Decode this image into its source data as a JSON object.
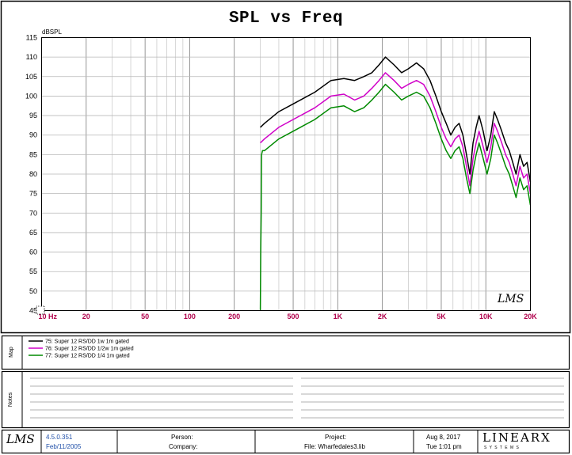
{
  "chart_data": {
    "type": "line",
    "title": "SPL vs Freq",
    "ylabel": "dBSPL",
    "xlabel": "",
    "x_scale": "log",
    "xlim": [
      10,
      20000
    ],
    "ylim": [
      45,
      115
    ],
    "yticks": [
      45,
      50,
      55,
      60,
      65,
      70,
      75,
      80,
      85,
      90,
      95,
      100,
      105,
      110,
      115
    ],
    "xticks": [
      {
        "v": 10,
        "label": "10 Hz"
      },
      {
        "v": 20,
        "label": "20"
      },
      {
        "v": 50,
        "label": "50"
      },
      {
        "v": 100,
        "label": "100"
      },
      {
        "v": 200,
        "label": "200"
      },
      {
        "v": 500,
        "label": "500"
      },
      {
        "v": 1000,
        "label": "1K"
      },
      {
        "v": 2000,
        "label": "2K"
      },
      {
        "v": 5000,
        "label": "5K"
      },
      {
        "v": 10000,
        "label": "10K"
      },
      {
        "v": 20000,
        "label": "20K"
      }
    ],
    "grid": true,
    "series": [
      {
        "name": "75: Super 12 RS/DD  1w 1m gated",
        "color": "#000000",
        "x": [
          300,
          320,
          400,
          500,
          700,
          900,
          1100,
          1300,
          1500,
          1700,
          1900,
          2100,
          2400,
          2700,
          3000,
          3400,
          3800,
          4200,
          4600,
          5000,
          5400,
          5800,
          6200,
          6600,
          7000,
          7400,
          7800,
          8200,
          8600,
          9000,
          9600,
          10200,
          10800,
          11400,
          12000,
          12800,
          13600,
          14400,
          15200,
          16000,
          17000,
          18000,
          19000,
          20000
        ],
        "y": [
          92,
          93,
          96,
          98,
          101,
          104,
          104.5,
          104,
          105,
          106,
          108,
          110,
          108,
          106,
          107,
          108.5,
          107,
          104,
          100,
          96,
          93,
          90,
          92,
          93,
          90,
          85,
          80,
          88,
          92,
          95,
          91,
          86,
          90,
          96,
          94,
          91,
          88,
          86,
          83,
          80,
          85,
          82,
          83,
          78
        ]
      },
      {
        "name": "76: Super 12 RS/DD  1/2w 1m gated",
        "color": "#d000c8",
        "x": [
          300,
          320,
          400,
          500,
          700,
          900,
          1100,
          1300,
          1500,
          1700,
          1900,
          2100,
          2400,
          2700,
          3000,
          3400,
          3800,
          4200,
          4600,
          5000,
          5400,
          5800,
          6200,
          6600,
          7000,
          7400,
          7800,
          8200,
          8600,
          9000,
          9600,
          10200,
          10800,
          11400,
          12000,
          12800,
          13600,
          14400,
          15200,
          16000,
          17000,
          18000,
          19000,
          20000
        ],
        "y": [
          88,
          89,
          92,
          94,
          97,
          100,
          100.5,
          99,
          100,
          102,
          104,
          106,
          104,
          102,
          103,
          104,
          103,
          100,
          96,
          92,
          89,
          87,
          89,
          90,
          87,
          82,
          77,
          84,
          88,
          91,
          87,
          83,
          87,
          93,
          91,
          88,
          85,
          83,
          80,
          77,
          82,
          79,
          80,
          75
        ]
      },
      {
        "name": "77: Super 12 RS/DD  1/4 1m gated",
        "color": "#008a00",
        "x": [
          300,
          302,
          304,
          306,
          310,
          320,
          400,
          500,
          700,
          900,
          1100,
          1300,
          1500,
          1700,
          1900,
          2100,
          2400,
          2700,
          3000,
          3400,
          3800,
          4200,
          4600,
          5000,
          5400,
          5800,
          6200,
          6600,
          7000,
          7400,
          7800,
          8200,
          8600,
          9000,
          9600,
          10200,
          10800,
          11400,
          12000,
          12800,
          13600,
          14400,
          15200,
          16000,
          17000,
          18000,
          19000,
          20000
        ],
        "y": [
          45,
          60,
          70,
          85,
          86,
          86,
          89,
          91,
          94,
          97,
          97.5,
          96,
          97,
          99,
          101,
          103,
          101,
          99,
          100,
          101,
          100,
          97,
          93,
          89,
          86,
          84,
          86,
          87,
          84,
          79,
          75,
          81,
          85,
          88,
          84,
          80,
          84,
          90,
          88,
          85,
          82,
          80,
          77,
          74,
          79,
          76,
          77,
          72
        ]
      }
    ]
  },
  "map_section": {
    "label": "Map"
  },
  "notes_section": {
    "label": "Notes"
  },
  "footer": {
    "version": "4.5.0.351",
    "version_date": "Feb/11/2005",
    "person_label": "Person:",
    "company_label": "Company:",
    "project_label": "Project:",
    "file_label": "File: Wharfedales3.lib",
    "date": "Aug  8, 2017",
    "time": "Tue  1:01 pm",
    "brand": "LINEARX",
    "brand_sub": "S Y S T E M S",
    "lms_logo": "LMS"
  },
  "plot_logo": "LMS"
}
